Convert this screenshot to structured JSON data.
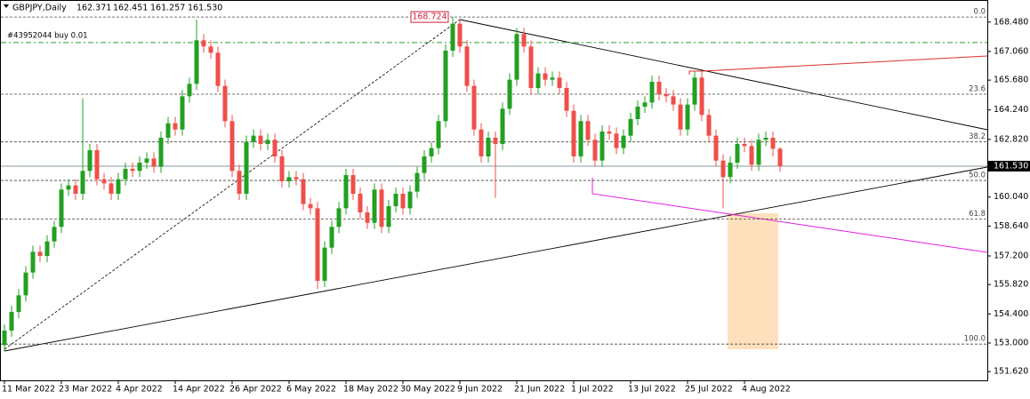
{
  "chart_data": {
    "type": "candlestick",
    "header": {
      "symbol": "GBPJPY,Daily",
      "open": "162.371",
      "high": "162.451",
      "low": "161.257",
      "close": "161.530"
    },
    "order_label": "#43952044 buy 0.01",
    "order_price": 167.49,
    "high_label": "168.724",
    "last_price": {
      "value": 161.53,
      "label": "161.530"
    },
    "bull_color": "#22a022",
    "bear_color": "#ef4f4a",
    "ylim": [
      151.2,
      169.5
    ],
    "yticks": [
      {
        "value": 168.48,
        "label": "168.480"
      },
      {
        "value": 167.06,
        "label": "167.060"
      },
      {
        "value": 165.68,
        "label": "165.680"
      },
      {
        "value": 164.24,
        "label": "164.240"
      },
      {
        "value": 162.82,
        "label": "162.820"
      },
      {
        "value": 160.04,
        "label": "160.040"
      },
      {
        "value": 158.64,
        "label": "158.640"
      },
      {
        "value": 157.2,
        "label": "157.200"
      },
      {
        "value": 155.82,
        "label": "155.820"
      },
      {
        "value": 154.4,
        "label": "154.400"
      },
      {
        "value": 153.0,
        "label": "153.000"
      },
      {
        "value": 151.62,
        "label": "151.620"
      }
    ],
    "fib_levels": [
      {
        "label": "0.0",
        "price": 168.724
      },
      {
        "label": "23.6",
        "price": 165.0
      },
      {
        "label": "38.2",
        "price": 162.7
      },
      {
        "label": "50.0",
        "price": 160.84
      },
      {
        "label": "61.8",
        "price": 158.98
      },
      {
        "label": "100.0",
        "price": 152.95
      }
    ],
    "x_labels": [
      {
        "index": 0,
        "label": "11 Mar 2022"
      },
      {
        "index": 8,
        "label": "23 Mar 2022"
      },
      {
        "index": 16,
        "label": "4 Apr 2022"
      },
      {
        "index": 24,
        "label": "14 Apr 2022"
      },
      {
        "index": 32,
        "label": "26 Apr 2022"
      },
      {
        "index": 40,
        "label": "6 May 2022"
      },
      {
        "index": 48,
        "label": "18 May 2022"
      },
      {
        "index": 56,
        "label": "30 May 2022"
      },
      {
        "index": 64,
        "label": "9 Jun 2022"
      },
      {
        "index": 72,
        "label": "21 Jun 2022"
      },
      {
        "index": 80,
        "label": "1 Jul 2022"
      },
      {
        "index": 88,
        "label": "13 Jul 2022"
      },
      {
        "index": 96,
        "label": "25 Jul 2022"
      },
      {
        "index": 104,
        "label": "4 Aug 2022"
      }
    ],
    "open": [
      152.9,
      153.6,
      154.5,
      155.3,
      156.4,
      157.4,
      157.2,
      157.9,
      158.6,
      160.4,
      160.6,
      160.2,
      161.3,
      162.3,
      160.9,
      160.7,
      160.2,
      160.9,
      161.4,
      161.3,
      161.7,
      161.9,
      161.5,
      162.9,
      163.6,
      163.3,
      164.9,
      165.5,
      167.6,
      167.3,
      167.0,
      165.4,
      163.7,
      161.3,
      160.2,
      162.7,
      163.0,
      162.6,
      162.8,
      162.0,
      160.8,
      161.0,
      160.9,
      159.7,
      159.5,
      156.0,
      157.6,
      158.6,
      159.5,
      161.1,
      160.2,
      159.3,
      158.8,
      160.4,
      158.6,
      159.6,
      160.2,
      159.5,
      160.3,
      161.2,
      162.0,
      162.4,
      163.7,
      167.1,
      168.4,
      167.3,
      165.4,
      163.3,
      162.0,
      162.9,
      162.6,
      164.3,
      165.7,
      167.9,
      167.3,
      165.3,
      166.0,
      165.7,
      165.8,
      165.3,
      164.2,
      162.0,
      163.7,
      162.8,
      161.8,
      163.2,
      163.1,
      162.4,
      163.0,
      163.8,
      164.4,
      164.6,
      165.6,
      165.0,
      164.9,
      164.5,
      163.3,
      164.5,
      165.8,
      164.0,
      163.0,
      161.8,
      161.0,
      161.7,
      162.6,
      162.5,
      161.6,
      162.8,
      162.9,
      162.371
    ],
    "high": [
      153.9,
      154.8,
      155.6,
      156.7,
      157.7,
      157.7,
      158.2,
      158.9,
      160.7,
      160.9,
      160.9,
      164.8,
      162.6,
      162.6,
      161.2,
      161.0,
      161.2,
      161.7,
      161.7,
      162.0,
      162.2,
      162.2,
      163.2,
      163.9,
      163.9,
      165.2,
      165.8,
      168.6,
      167.9,
      167.6,
      167.3,
      165.7,
      164.0,
      161.6,
      163.0,
      163.3,
      163.3,
      163.1,
      163.1,
      162.3,
      161.3,
      161.3,
      161.2,
      160.0,
      159.8,
      157.9,
      158.9,
      159.8,
      161.4,
      161.4,
      160.5,
      159.6,
      160.7,
      160.7,
      159.9,
      160.5,
      160.5,
      160.6,
      161.5,
      162.3,
      162.7,
      164.0,
      167.4,
      168.724,
      168.6,
      167.6,
      165.7,
      163.6,
      163.2,
      163.2,
      164.6,
      166.0,
      168.2,
      168.2,
      167.6,
      166.3,
      166.3,
      166.1,
      166.1,
      165.6,
      164.5,
      164.0,
      164.0,
      163.1,
      163.5,
      163.5,
      163.4,
      163.3,
      164.1,
      164.7,
      164.9,
      165.9,
      165.9,
      165.3,
      165.2,
      164.8,
      164.8,
      166.1,
      166.1,
      164.3,
      163.3,
      162.1,
      162.0,
      162.9,
      162.9,
      162.8,
      163.1,
      163.2,
      163.2,
      162.451
    ],
    "low": [
      152.6,
      153.3,
      154.2,
      155.0,
      156.1,
      156.9,
      156.9,
      157.6,
      158.3,
      160.1,
      159.9,
      159.9,
      161.0,
      160.6,
      160.4,
      159.9,
      159.9,
      160.6,
      161.0,
      161.0,
      161.4,
      161.2,
      161.2,
      162.6,
      163.0,
      163.0,
      164.6,
      165.2,
      167.0,
      166.7,
      165.1,
      163.4,
      161.0,
      159.9,
      159.9,
      162.4,
      162.3,
      162.3,
      161.7,
      160.5,
      160.5,
      160.6,
      159.4,
      159.2,
      155.6,
      155.7,
      157.3,
      158.3,
      159.2,
      159.9,
      159.0,
      158.5,
      158.5,
      158.3,
      158.3,
      159.3,
      159.2,
      159.2,
      160.0,
      160.9,
      161.7,
      162.1,
      163.4,
      166.8,
      167.0,
      165.1,
      163.0,
      161.7,
      161.7,
      160.0,
      162.3,
      164.0,
      165.4,
      167.0,
      165.0,
      165.0,
      165.4,
      165.4,
      165.0,
      163.9,
      161.7,
      161.7,
      162.5,
      161.5,
      161.5,
      162.8,
      162.1,
      162.1,
      162.7,
      163.5,
      164.1,
      164.3,
      164.7,
      164.6,
      164.2,
      163.0,
      163.0,
      164.2,
      163.7,
      162.7,
      161.5,
      159.5,
      160.7,
      161.4,
      162.2,
      161.3,
      161.3,
      162.5,
      162.0,
      161.257
    ],
    "close": [
      153.6,
      154.5,
      155.3,
      156.4,
      157.4,
      157.2,
      157.9,
      158.6,
      160.4,
      160.6,
      160.2,
      161.3,
      162.3,
      160.9,
      160.7,
      160.2,
      160.9,
      161.4,
      161.3,
      161.7,
      161.9,
      161.5,
      162.9,
      163.6,
      163.3,
      164.9,
      165.5,
      167.6,
      167.3,
      167.0,
      165.4,
      163.7,
      161.3,
      160.2,
      162.7,
      163.0,
      162.6,
      162.8,
      162.0,
      160.8,
      161.0,
      160.9,
      159.7,
      159.5,
      156.0,
      157.6,
      158.6,
      159.5,
      161.1,
      160.2,
      159.3,
      158.8,
      160.4,
      158.6,
      159.6,
      160.2,
      159.5,
      160.3,
      161.2,
      162.0,
      162.4,
      163.7,
      167.1,
      168.4,
      167.3,
      165.4,
      163.3,
      162.0,
      162.9,
      162.6,
      164.3,
      165.7,
      167.9,
      167.3,
      165.3,
      166.0,
      165.7,
      165.8,
      165.3,
      164.2,
      162.0,
      163.7,
      162.8,
      161.8,
      163.2,
      163.1,
      162.4,
      163.0,
      163.8,
      164.4,
      164.6,
      165.6,
      165.0,
      164.9,
      164.5,
      163.3,
      164.5,
      165.8,
      164.0,
      163.0,
      161.8,
      161.0,
      161.7,
      162.6,
      162.5,
      161.6,
      162.8,
      162.9,
      162.371,
      161.53
    ]
  }
}
